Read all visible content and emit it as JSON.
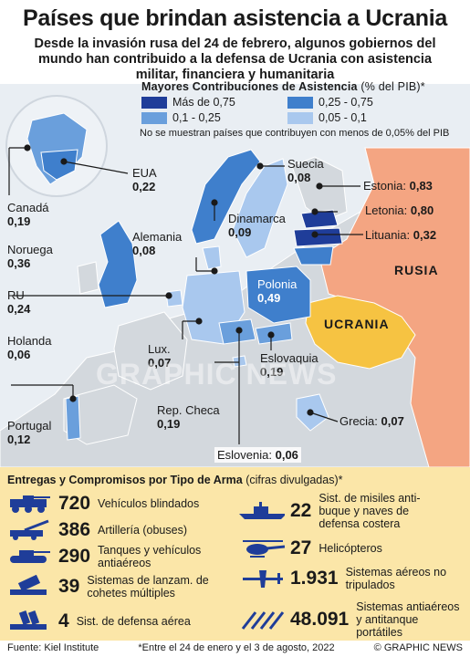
{
  "header": {
    "title": "Países que brindan asistencia a Ucrania",
    "subtitle": "Desde la invasión rusa del 24 de febrero, algunos gobiernos del mundo han contribuido a la defensa de Ucrania con asistencia militar, financiera y humanitaria"
  },
  "legend": {
    "title": "Mayores Contribuciones de Asistencia",
    "unit": "(% del PIB)*",
    "items": [
      {
        "label": "Más de 0,75",
        "color": "#1f3d99"
      },
      {
        "label": "0,25 - 0,75",
        "color": "#3f7fcc"
      },
      {
        "label": "0,1 - 0,25",
        "color": "#6a9fdc"
      },
      {
        "label": "0,05 - 0,1",
        "color": "#a9c8ee"
      }
    ],
    "note": "No se muestran países que contribuyen con menos de 0,05% del PIB"
  },
  "countries": {
    "eua": {
      "name": "EUA",
      "value": "0,22"
    },
    "canada": {
      "name": "Canadá",
      "value": "0,19"
    },
    "noruega": {
      "name": "Noruega",
      "value": "0,36"
    },
    "ru": {
      "name": "RU",
      "value": "0,24"
    },
    "holanda": {
      "name": "Holanda",
      "value": "0,06"
    },
    "portugal": {
      "name": "Portugal",
      "value": "0,12"
    },
    "suecia": {
      "name": "Suecia",
      "value": "0,08"
    },
    "estonia": {
      "name": "Estonia:",
      "value": "0,83"
    },
    "letonia": {
      "name": "Letonia:",
      "value": "0,80"
    },
    "lituania": {
      "name": "Lituania:",
      "value": "0,32"
    },
    "alemania": {
      "name": "Alemania",
      "value": "0,08"
    },
    "dinamarca": {
      "name": "Dinamarca",
      "value": "0,09"
    },
    "polonia": {
      "name": "Polonia",
      "value": "0,49"
    },
    "lux": {
      "name": "Lux.",
      "value": "0,07"
    },
    "eslovaquia": {
      "name": "Eslovaquia",
      "value": "0,19"
    },
    "checa": {
      "name": "Rep. Checa",
      "value": "0,19"
    },
    "grecia": {
      "name": "Grecia:",
      "value": "0,07"
    },
    "eslovenia": {
      "name": "Eslovenia:",
      "value": "0,06"
    }
  },
  "map_labels": {
    "rusia": "RUSIA",
    "ucrania": "UCRANIA",
    "watermark": "GRAPHIC NEWS"
  },
  "colors": {
    "russia": "#f4a582",
    "ukraine": "#f6c342",
    "sea": "#e9eef3",
    "land": "#d3d8dd"
  },
  "weapons": {
    "title": "Entregas y Compromisos por Tipo de Arma",
    "unit": "(cifras divulgadas)*",
    "items": [
      {
        "icon": "armored-vehicle-icon",
        "number": "720",
        "desc": "Vehículos blindados"
      },
      {
        "icon": "artillery-icon",
        "number": "386",
        "desc": "Artillería (obuses)"
      },
      {
        "icon": "tank-icon",
        "number": "290",
        "desc": "Tanques y vehículos antiaéreos"
      },
      {
        "icon": "rocket-launcher-icon",
        "number": "39",
        "desc": "Sistemas de lanzam. de cohetes múltiples"
      },
      {
        "icon": "air-defense-icon",
        "number": "4",
        "desc": "Sist. de defensa aérea"
      },
      {
        "icon": "warship-icon",
        "number": "22",
        "desc": "Sist. de misiles anti-buque y naves de defensa costera"
      },
      {
        "icon": "helicopter-icon",
        "number": "27",
        "desc": "Helicópteros"
      },
      {
        "icon": "drone-icon",
        "number": "1.931",
        "desc": "Sistemas aéreos no tripulados"
      },
      {
        "icon": "missiles-icon",
        "number": "48.091",
        "desc": "Sistemas antiaéreos y antitanque portátiles"
      }
    ]
  },
  "footer": {
    "source": "Fuente: Kiel Institute",
    "note": "*Entre el 24 de enero y el 3 de agosto, 2022",
    "credit": "© GRAPHIC NEWS"
  }
}
